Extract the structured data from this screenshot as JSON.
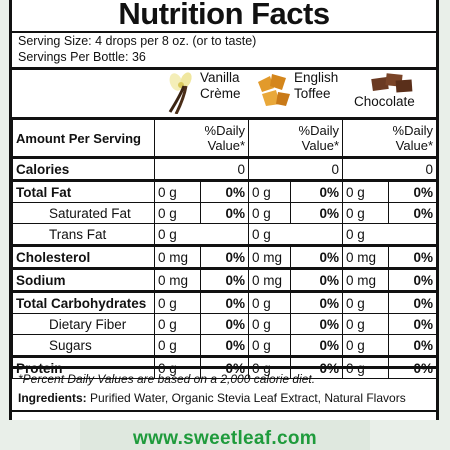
{
  "title": "Nutrition Facts",
  "serving_size": "Serving Size: 4 drops per 8 oz. (or to taste)",
  "servings_per_bottle": "Servings Per Bottle: 36",
  "flavors": [
    {
      "line1": "Vanilla",
      "line2": "Crème",
      "icon": "vanilla-bean-icon"
    },
    {
      "line1": "English",
      "line2": "Toffee",
      "icon": "toffee-icon"
    },
    {
      "line1": "Chocolate",
      "line2": "",
      "icon": "chocolate-icon"
    }
  ],
  "header": {
    "amount_per_serving": "Amount Per Serving",
    "dv_line1": "%Daily",
    "dv_line2": "Value*"
  },
  "rows": [
    {
      "name": "Calories",
      "v1": "",
      "p1": "0",
      "v2": "",
      "p2": "0",
      "v3": "",
      "p3": "0"
    },
    {
      "name": "Total Fat",
      "v1": "0 g",
      "p1": "0%",
      "v2": "0 g",
      "p2": "0%",
      "v3": "0 g",
      "p3": "0%"
    },
    {
      "name": "Saturated Fat",
      "v1": "0 g",
      "p1": "0%",
      "v2": "0 g",
      "p2": "0%",
      "v3": "0 g",
      "p3": "0%"
    },
    {
      "name": "Trans Fat",
      "v1": "0 g",
      "p1": "",
      "v2": "0 g",
      "p2": "",
      "v3": "0 g",
      "p3": ""
    },
    {
      "name": "Cholesterol",
      "v1": "0 mg",
      "p1": "0%",
      "v2": "0 mg",
      "p2": "0%",
      "v3": "0 mg",
      "p3": "0%"
    },
    {
      "name": "Sodium",
      "v1": "0 mg",
      "p1": "0%",
      "v2": "0 mg",
      "p2": "0%",
      "v3": "0 mg",
      "p3": "0%"
    },
    {
      "name": "Total Carbohydrates",
      "v1": "0 g",
      "p1": "0%",
      "v2": "0 g",
      "p2": "0%",
      "v3": "0 g",
      "p3": "0%"
    },
    {
      "name": "Dietary Fiber",
      "v1": "0 g",
      "p1": "0%",
      "v2": "0 g",
      "p2": "0%",
      "v3": "0 g",
      "p3": "0%"
    },
    {
      "name": "Sugars",
      "v1": "0 g",
      "p1": "0%",
      "v2": "0 g",
      "p2": "0%",
      "v3": "0 g",
      "p3": "0%"
    },
    {
      "name": "Protein",
      "v1": "0 g",
      "p1": "0%",
      "v2": "0 g",
      "p2": "0%",
      "v3": "0 g",
      "p3": "0%"
    }
  ],
  "footnote": "*Percent Daily Values are based on a 2,000 calorie diet.",
  "ingredients_label": "Ingredients:",
  "ingredients_text": "Purified Water, Organic Stevia Leaf Extract, Natural Flavors",
  "website": "www.sweetleaf.com",
  "colors": {
    "website_green": "#1f9b3c",
    "toffee": "#e29a2b",
    "chocolate": "#6b3a22"
  }
}
